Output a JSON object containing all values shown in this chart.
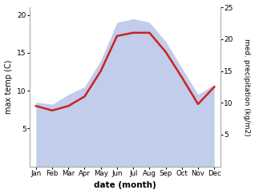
{
  "months": [
    "Jan",
    "Feb",
    "Mar",
    "Apr",
    "May",
    "Jun",
    "Jul",
    "Aug",
    "Sep",
    "Oct",
    "Nov",
    "Dec"
  ],
  "max_temp": [
    8.5,
    8.2,
    9.5,
    10.5,
    14.0,
    19.0,
    19.5,
    19.0,
    16.5,
    13.0,
    9.5,
    10.8
  ],
  "precipitation": [
    9.5,
    8.8,
    9.5,
    11.0,
    15.0,
    20.5,
    21.0,
    21.0,
    18.0,
    14.0,
    9.8,
    12.5
  ],
  "fill_color": "#b8c4e8",
  "fill_alpha": 0.85,
  "line_color": "#cc2222",
  "line_width": 1.8,
  "ylabel_left": "max temp (C)",
  "ylabel_right": "med. precipitation (kg/m2)",
  "xlabel": "date (month)",
  "ylim_left": [
    0,
    21
  ],
  "ylim_right": [
    0,
    25
  ],
  "yticks_left": [
    5,
    10,
    15,
    20
  ],
  "yticks_right": [
    5,
    10,
    15,
    20,
    25
  ],
  "bg_color": "#ffffff"
}
